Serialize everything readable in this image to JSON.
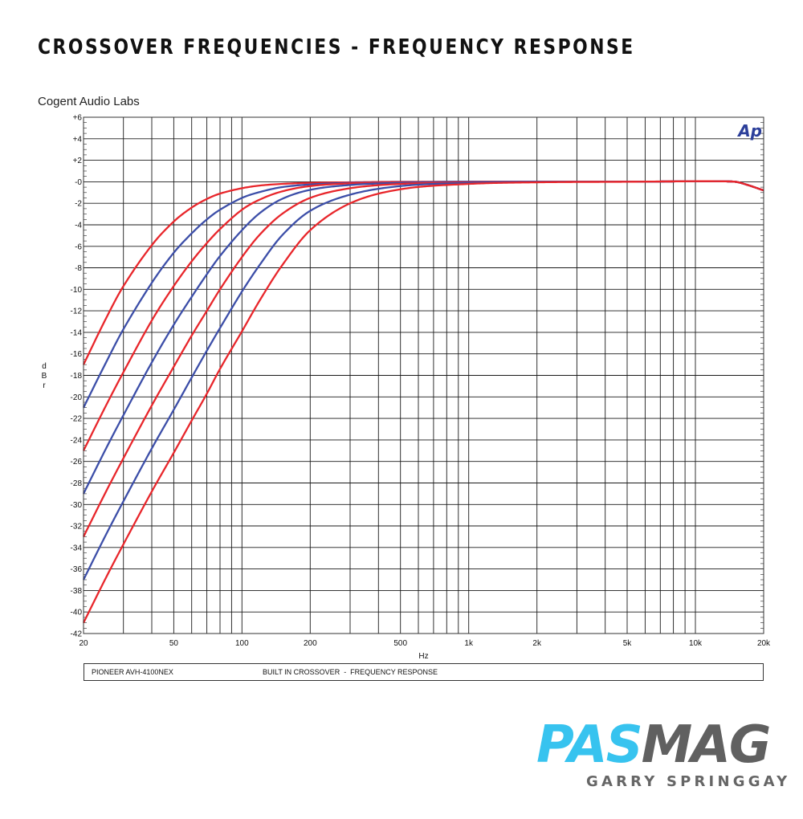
{
  "page": {
    "title": "CROSSOVER FREQUENCIES - FREQUENCY RESPONSE",
    "brand": "Cogent Audio Labs",
    "ap_logo": "Ap",
    "footer_left": "PIONEER AVH-4100NEX",
    "footer_right": "BUILT IN CROSSOVER  -  FREQUENCY RESPONSE",
    "pasmag_pas": "PAS",
    "pasmag_mag": "MAG",
    "author": "GARRY SPRINGGAY"
  },
  "chart_data": {
    "type": "line",
    "title": "CROSSOVER FREQUENCIES - FREQUENCY RESPONSE",
    "xlabel": "Hz",
    "ylabel": "dBr",
    "x_scale": "log",
    "xlim": [
      20,
      20000
    ],
    "ylim": [
      -42,
      6
    ],
    "grid": true,
    "legend": "none",
    "x_ticks": [
      "20",
      "50",
      "100",
      "200",
      "500",
      "1k",
      "2k",
      "5k",
      "10k",
      "20k"
    ],
    "x_tick_values": [
      20,
      50,
      100,
      200,
      500,
      1000,
      2000,
      5000,
      10000,
      20000
    ],
    "y_ticks": [
      "+6",
      "+4",
      "+2",
      "-0",
      "-2",
      "-4",
      "-6",
      "-8",
      "-10",
      "-12",
      "-14",
      "-16",
      "-18",
      "-20",
      "-22",
      "-24",
      "-26",
      "-28",
      "-30",
      "-32",
      "-34",
      "-36",
      "-38",
      "-40",
      "-42"
    ],
    "y_tick_values": [
      6,
      4,
      2,
      0,
      -2,
      -4,
      -6,
      -8,
      -10,
      -12,
      -14,
      -16,
      -18,
      -20,
      -22,
      -24,
      -26,
      -28,
      -30,
      -32,
      -34,
      -36,
      -38,
      -40,
      -42
    ],
    "colors": {
      "red": "#e8262b",
      "blue": "#3c4ea8",
      "grid": "#1a1a1a",
      "frame": "#333333"
    },
    "series": [
      {
        "color": "#e8262b",
        "x": [
          20,
          25,
          30,
          40,
          50,
          60,
          70,
          80,
          100,
          120,
          150,
          200,
          300,
          500,
          1000,
          2000,
          5000,
          10000,
          12000,
          15000,
          17000,
          20000
        ],
        "y": [
          -17,
          -12.8,
          -9.7,
          -5.9,
          -3.7,
          -2.4,
          -1.6,
          -1.1,
          -0.6,
          -0.35,
          -0.2,
          -0.1,
          -0.05,
          0,
          0,
          0,
          0,
          0.05,
          0.05,
          0,
          -0.3,
          -0.8
        ]
      },
      {
        "color": "#3c4ea8",
        "x": [
          20,
          25,
          30,
          40,
          50,
          60,
          70,
          80,
          100,
          120,
          150,
          200,
          300,
          500,
          1000,
          2000,
          5000,
          10000,
          12000,
          15000,
          17000,
          20000
        ],
        "y": [
          -21,
          -16.9,
          -13.7,
          -9.4,
          -6.6,
          -4.8,
          -3.5,
          -2.6,
          -1.5,
          -0.95,
          -0.5,
          -0.25,
          -0.1,
          -0.03,
          0,
          0,
          0,
          0.05,
          0.05,
          0,
          -0.3,
          -0.8
        ]
      },
      {
        "color": "#e8262b",
        "x": [
          20,
          25,
          30,
          40,
          50,
          60,
          70,
          80,
          100,
          120,
          150,
          200,
          300,
          500,
          1000,
          2000,
          5000,
          10000,
          12000,
          15000,
          17000,
          20000
        ],
        "y": [
          -25,
          -20.9,
          -17.7,
          -12.9,
          -9.7,
          -7.4,
          -5.7,
          -4.4,
          -2.6,
          -1.65,
          -0.9,
          -0.4,
          -0.15,
          -0.05,
          0,
          0,
          0,
          0.05,
          0.05,
          0,
          -0.3,
          -0.8
        ]
      },
      {
        "color": "#3c4ea8",
        "x": [
          20,
          25,
          30,
          40,
          50,
          60,
          70,
          80,
          100,
          120,
          150,
          200,
          300,
          500,
          1000,
          2000,
          5000,
          10000,
          12000,
          15000,
          17000,
          20000
        ],
        "y": [
          -29,
          -24.9,
          -21.7,
          -16.8,
          -13.3,
          -10.7,
          -8.6,
          -6.9,
          -4.5,
          -2.9,
          -1.6,
          -0.75,
          -0.3,
          -0.1,
          0,
          0,
          0,
          0.05,
          0.05,
          0,
          -0.3,
          -0.8
        ]
      },
      {
        "color": "#e8262b",
        "x": [
          20,
          25,
          30,
          40,
          50,
          60,
          70,
          80,
          100,
          120,
          150,
          200,
          300,
          500,
          1000,
          2000,
          5000,
          10000,
          12000,
          15000,
          17000,
          20000
        ],
        "y": [
          -33,
          -28.9,
          -25.7,
          -20.8,
          -17.2,
          -14.3,
          -12,
          -10,
          -7,
          -4.9,
          -3,
          -1.5,
          -0.6,
          -0.2,
          -0.05,
          0,
          0,
          0.05,
          0.05,
          0,
          -0.3,
          -0.8
        ]
      },
      {
        "color": "#3c4ea8",
        "x": [
          20,
          25,
          30,
          40,
          50,
          60,
          70,
          80,
          100,
          120,
          150,
          200,
          300,
          500,
          1000,
          2000,
          5000,
          10000,
          12000,
          15000,
          17000,
          20000
        ],
        "y": [
          -37,
          -32.9,
          -29.7,
          -24.8,
          -21.2,
          -18.2,
          -15.7,
          -13.6,
          -10.2,
          -7.7,
          -5,
          -2.7,
          -1.2,
          -0.4,
          -0.1,
          0,
          0,
          0.05,
          0.05,
          0,
          -0.3,
          -0.8
        ]
      },
      {
        "color": "#e8262b",
        "x": [
          20,
          25,
          30,
          40,
          50,
          60,
          70,
          80,
          100,
          120,
          150,
          200,
          300,
          500,
          1000,
          2000,
          5000,
          10000,
          12000,
          15000,
          17000,
          20000
        ],
        "y": [
          -41,
          -36.9,
          -33.7,
          -28.8,
          -25.2,
          -22.2,
          -19.7,
          -17.4,
          -13.9,
          -11,
          -7.8,
          -4.5,
          -2,
          -0.7,
          -0.2,
          -0.05,
          0,
          0.05,
          0.05,
          0,
          -0.3,
          -0.8
        ]
      }
    ]
  }
}
